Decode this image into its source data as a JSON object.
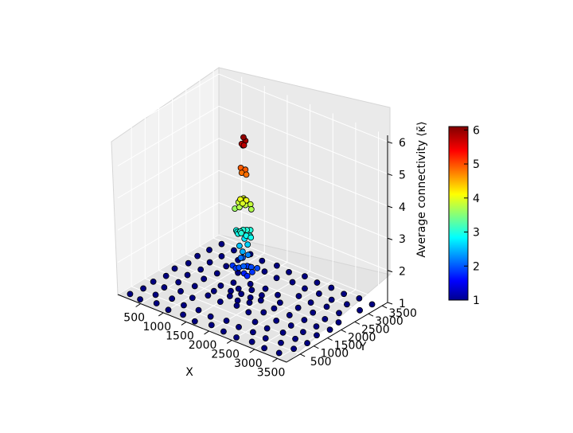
{
  "chart_data": {
    "type": "scatter",
    "projection": "3d",
    "xlabel": "X",
    "ylabel": "Y",
    "zlabel": "Average connectivity ⟨κ̄⟩",
    "xlim": [
      0,
      3700
    ],
    "ylim": [
      0,
      3700
    ],
    "zlim": [
      1,
      6.2
    ],
    "x_ticks": [
      "500",
      "1000",
      "1500",
      "2000",
      "2500",
      "3000",
      "3500"
    ],
    "y_ticks": [
      "500",
      "1000",
      "1500",
      "2000",
      "2500",
      "3000",
      "3500"
    ],
    "z_ticks": [
      "1",
      "2",
      "3",
      "4",
      "5",
      "6"
    ],
    "grid": true,
    "colormap": "jet",
    "colorbar": {
      "range": [
        1,
        6.1
      ],
      "ticks": [
        "1",
        "2",
        "3",
        "4",
        "5",
        "6"
      ],
      "placement": "right"
    },
    "marker_edge_color": "#000000",
    "series": [
      {
        "points": [
          [
            150,
            200,
            1.0
          ],
          [
            400,
            150,
            1.0
          ],
          [
            700,
            250,
            1.0
          ],
          [
            1000,
            180,
            1.0
          ],
          [
            1300,
            220,
            1.0
          ],
          [
            1600,
            150,
            1.0
          ],
          [
            1900,
            260,
            1.0
          ],
          [
            2200,
            200,
            1.0
          ],
          [
            2500,
            170,
            1.0
          ],
          [
            2800,
            240,
            1.0
          ],
          [
            3100,
            190,
            1.0
          ],
          [
            3400,
            230,
            1.0
          ],
          [
            200,
            600,
            1.0
          ],
          [
            500,
            550,
            1.0
          ],
          [
            800,
            650,
            1.0
          ],
          [
            1100,
            580,
            1.0
          ],
          [
            1400,
            620,
            1.0
          ],
          [
            1700,
            560,
            1.0
          ],
          [
            2000,
            640,
            1.0
          ],
          [
            2300,
            590,
            1.0
          ],
          [
            2600,
            610,
            1.0
          ],
          [
            2900,
            570,
            1.0
          ],
          [
            3200,
            630,
            1.0
          ],
          [
            3500,
            600,
            1.0
          ],
          [
            180,
            1000,
            1.0
          ],
          [
            450,
            950,
            1.0
          ],
          [
            750,
            1050,
            1.0
          ],
          [
            1050,
            980,
            1.0
          ],
          [
            2400,
            1020,
            1.0
          ],
          [
            2700,
            960,
            1.0
          ],
          [
            3000,
            1040,
            1.0
          ],
          [
            3300,
            990,
            1.0
          ],
          [
            3550,
            1010,
            1.0
          ],
          [
            220,
            1400,
            1.0
          ],
          [
            520,
            1350,
            1.0
          ],
          [
            820,
            1450,
            1.0
          ],
          [
            2650,
            1380,
            1.0
          ],
          [
            2950,
            1420,
            1.0
          ],
          [
            3250,
            1360,
            1.0
          ],
          [
            3500,
            1440,
            1.0
          ],
          [
            170,
            1800,
            1.0
          ],
          [
            480,
            1750,
            1.0
          ],
          [
            780,
            1850,
            1.0
          ],
          [
            2700,
            1780,
            1.0
          ],
          [
            3000,
            1820,
            1.0
          ],
          [
            3300,
            1760,
            1.0
          ],
          [
            3550,
            1840,
            1.0
          ],
          [
            230,
            2200,
            1.0
          ],
          [
            530,
            2150,
            1.0
          ],
          [
            830,
            2250,
            1.0
          ],
          [
            2650,
            2180,
            1.0
          ],
          [
            2950,
            2220,
            1.0
          ],
          [
            3250,
            2160,
            1.0
          ],
          [
            3500,
            2240,
            1.0
          ],
          [
            190,
            2600,
            1.0
          ],
          [
            490,
            2550,
            1.0
          ],
          [
            790,
            2650,
            1.0
          ],
          [
            1090,
            2580,
            1.0
          ],
          [
            2400,
            2620,
            1.0
          ],
          [
            2700,
            2560,
            1.0
          ],
          [
            3000,
            2640,
            1.0
          ],
          [
            3300,
            2590,
            1.0
          ],
          [
            210,
            3000,
            1.0
          ],
          [
            510,
            2950,
            1.0
          ],
          [
            810,
            3050,
            1.0
          ],
          [
            1110,
            2980,
            1.0
          ],
          [
            1410,
            3020,
            1.0
          ],
          [
            1710,
            2960,
            1.0
          ],
          [
            2010,
            3040,
            1.0
          ],
          [
            2310,
            2990,
            1.0
          ],
          [
            2610,
            3010,
            1.0
          ],
          [
            2910,
            2970,
            1.0
          ],
          [
            3210,
            3030,
            1.0
          ],
          [
            3510,
            3000,
            1.0
          ],
          [
            240,
            3400,
            1.0
          ],
          [
            540,
            3350,
            1.0
          ],
          [
            840,
            3450,
            1.0
          ],
          [
            1140,
            3380,
            1.0
          ],
          [
            1440,
            3420,
            1.0
          ],
          [
            1740,
            3360,
            1.0
          ],
          [
            2040,
            3440,
            1.0
          ],
          [
            2340,
            3390,
            1.0
          ],
          [
            2640,
            3410,
            1.0
          ],
          [
            2940,
            3370,
            1.0
          ],
          [
            3240,
            3430,
            1.0
          ],
          [
            3540,
            3400,
            1.0
          ],
          [
            1200,
            1300,
            1.0
          ],
          [
            1500,
            1250,
            1.0
          ],
          [
            1800,
            1350,
            1.0
          ],
          [
            2100,
            1280,
            1.0
          ],
          [
            2300,
            1500,
            1.0
          ],
          [
            2350,
            1800,
            1.0
          ],
          [
            2300,
            2100,
            1.0
          ],
          [
            2100,
            2350,
            1.0
          ],
          [
            1800,
            2400,
            1.0
          ],
          [
            1500,
            2350,
            1.0
          ],
          [
            1250,
            2150,
            1.0
          ],
          [
            1150,
            1850,
            1.0
          ],
          [
            1180,
            1550,
            1.0
          ],
          [
            1500,
            1600,
            1.0
          ],
          [
            1700,
            1550,
            1.0
          ],
          [
            1900,
            1650,
            1.0
          ],
          [
            2000,
            1900,
            1.0
          ],
          [
            1900,
            2100,
            1.0
          ],
          [
            1650,
            2150,
            1.0
          ],
          [
            1450,
            2000,
            1.0
          ],
          [
            1400,
            1800,
            1.0
          ],
          [
            1800,
            1850,
            1.0
          ],
          [
            1600,
            1850,
            1.0
          ]
        ]
      },
      {
        "points": [
          [
            1600,
            1650,
            1.9
          ],
          [
            1750,
            1700,
            1.8
          ],
          [
            1850,
            1800,
            2.0
          ],
          [
            1700,
            1900,
            1.9
          ],
          [
            1550,
            1800,
            1.8
          ],
          [
            1800,
            1600,
            2.1
          ],
          [
            1650,
            1750,
            2.2
          ],
          [
            1900,
            1750,
            1.9
          ],
          [
            1700,
            1600,
            2.0
          ],
          [
            1600,
            1900,
            2.1
          ],
          [
            1750,
            1850,
            2.3
          ],
          [
            1850,
            1650,
            1.8
          ],
          [
            1500,
            1700,
            1.9
          ],
          [
            1950,
            1850,
            2.0
          ],
          [
            1650,
            2000,
            1.8
          ]
        ]
      },
      {
        "points": [
          [
            1650,
            1700,
            2.6
          ],
          [
            1800,
            1750,
            2.7
          ],
          [
            1700,
            1800,
            2.8
          ],
          [
            1750,
            1650,
            2.5
          ]
        ]
      },
      {
        "points": [
          [
            1600,
            1700,
            3.0
          ],
          [
            1700,
            1750,
            3.1
          ],
          [
            1800,
            1700,
            3.0
          ],
          [
            1750,
            1800,
            3.1
          ],
          [
            1650,
            1800,
            3.0
          ],
          [
            1850,
            1750,
            3.0
          ],
          [
            1700,
            1650,
            3.1
          ],
          [
            1550,
            1750,
            3.0
          ],
          [
            1800,
            1850,
            3.1
          ],
          [
            1900,
            1700,
            3.0
          ],
          [
            1650,
            1650,
            3.0
          ],
          [
            1750,
            1600,
            3.1
          ]
        ]
      },
      {
        "points": [
          [
            1650,
            1700,
            3.8
          ],
          [
            1750,
            1750,
            3.9
          ],
          [
            1700,
            1800,
            4.0
          ],
          [
            1800,
            1700,
            4.1
          ],
          [
            1600,
            1750,
            3.9
          ],
          [
            1750,
            1650,
            4.0
          ],
          [
            1850,
            1800,
            3.8
          ],
          [
            1650,
            1850,
            4.0
          ],
          [
            1700,
            1650,
            4.1
          ],
          [
            1800,
            1850,
            3.9
          ],
          [
            1550,
            1700,
            3.7
          ]
        ]
      },
      {
        "points": [
          [
            1700,
            1700,
            4.9
          ],
          [
            1750,
            1750,
            5.0
          ],
          [
            1800,
            1700,
            4.9
          ],
          [
            1650,
            1750,
            5.0
          ]
        ]
      },
      {
        "points": [
          [
            1700,
            1700,
            5.8
          ],
          [
            1750,
            1750,
            5.9
          ],
          [
            1680,
            1780,
            5.7
          ],
          [
            1760,
            1680,
            5.8
          ],
          [
            1720,
            1730,
            6.0
          ]
        ]
      }
    ]
  }
}
